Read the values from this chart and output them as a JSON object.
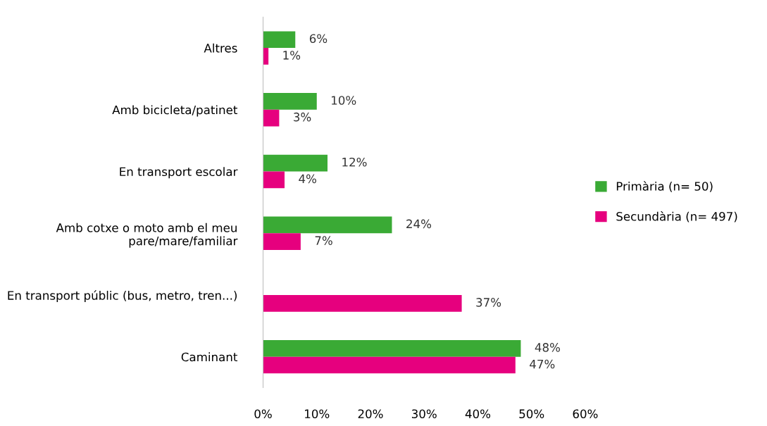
{
  "chart_data": {
    "type": "bar",
    "orientation": "horizontal",
    "categories": [
      "Altres",
      "Amb bicicleta/patinet",
      "En transport escolar",
      "Amb cotxe o moto amb el meu\npare/mare/familiar",
      "En transport públic (bus, metro, tren...)",
      "Caminant"
    ],
    "series": [
      {
        "name": "Primària (n= 50)",
        "color": "#3aaa35",
        "values": [
          6,
          10,
          12,
          24,
          null,
          48
        ],
        "value_labels": [
          "6%",
          "10%",
          "12%",
          "24%",
          null,
          "48%"
        ]
      },
      {
        "name": "Secundària (n= 497)",
        "color": "#e6007e",
        "values": [
          1,
          3,
          4,
          7,
          37,
          47
        ],
        "value_labels": [
          "1%",
          "3%",
          "4%",
          "7%",
          "37%",
          "47%"
        ]
      }
    ],
    "xlim": [
      0,
      60
    ],
    "xticks": [
      {
        "value": 0,
        "label": "0%"
      },
      {
        "value": 10,
        "label": "10%"
      },
      {
        "value": 20,
        "label": "20%"
      },
      {
        "value": 30,
        "label": "30%"
      },
      {
        "value": 40,
        "label": "40%"
      },
      {
        "value": 50,
        "label": "50%"
      },
      {
        "value": 60,
        "label": "60%"
      }
    ],
    "legend": "right",
    "grid": false
  }
}
